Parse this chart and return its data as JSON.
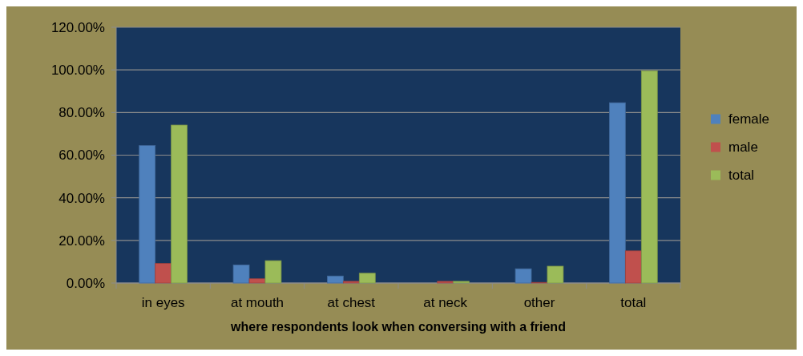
{
  "chart_data": {
    "type": "bar",
    "xlabel": "where respondents look when conversing with a friend",
    "categories": [
      "in eyes",
      "at mouth",
      "at chest",
      "at neck",
      "other",
      "total"
    ],
    "series": [
      {
        "name": "female",
        "color": "#4f81bd",
        "values": [
          64.5,
          8.5,
          3.3,
          0,
          6.7,
          84.6
        ]
      },
      {
        "name": "male",
        "color": "#c0504d",
        "values": [
          9.2,
          2.0,
          0.8,
          0.8,
          0.3,
          15.1
        ]
      },
      {
        "name": "total",
        "color": "#9bbb59",
        "values": [
          74.1,
          10.5,
          4.6,
          0.8,
          7.9,
          99.6
        ]
      }
    ],
    "ylim": [
      0,
      120
    ],
    "yticks": [
      {
        "value": 0,
        "label": "0.00%"
      },
      {
        "value": 20,
        "label": "20.00%"
      },
      {
        "value": 40,
        "label": "40.00%"
      },
      {
        "value": 60,
        "label": "60.00%"
      },
      {
        "value": 80,
        "label": "80.00%"
      },
      {
        "value": 100,
        "label": "100.00%"
      },
      {
        "value": 120,
        "label": "120.00%"
      }
    ],
    "grid": "y",
    "legend": "right"
  }
}
